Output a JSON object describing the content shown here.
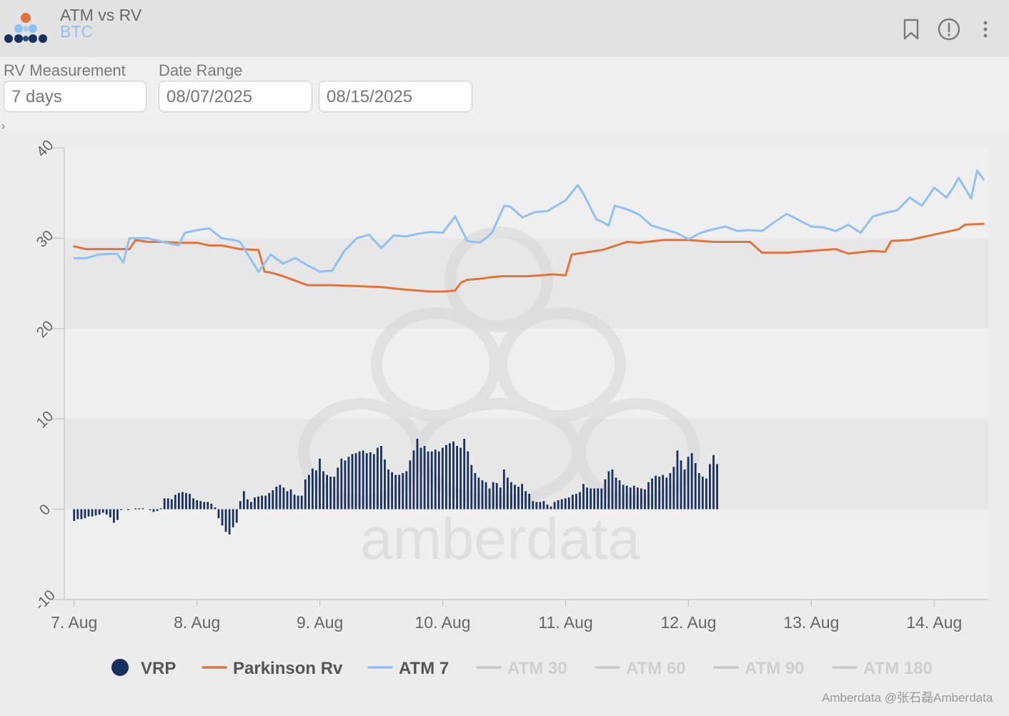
{
  "header": {
    "title": "ATM vs RV",
    "subtitle": "BTC",
    "icons": [
      "bookmark-icon",
      "info-icon",
      "more-vert-icon"
    ]
  },
  "filters": {
    "rv_label": "RV Measurement",
    "rv_value": "7 days",
    "date_label": "Date Range",
    "date_start": "08/07/2025",
    "date_end": "08/15/2025"
  },
  "watermark_text": "amberdata",
  "footer_text": "Amberdata  @张石磊Amberdata",
  "chart_data": {
    "type": "line+bar",
    "title": "",
    "xlabel": "",
    "ylabel": "",
    "ylim": [
      -10,
      40
    ],
    "y_ticks": [
      "40",
      "30",
      "20",
      "10",
      "0",
      "-10"
    ],
    "x_ticks": [
      "7. Aug",
      "8. Aug",
      "9. Aug",
      "10. Aug",
      "11. Aug",
      "12. Aug",
      "13. Aug",
      "14. Aug"
    ],
    "xlim_days": [
      6.92,
      14.44
    ],
    "legend": [
      {
        "name": "VRP",
        "color": "#17305e",
        "marker": "dot",
        "active": true
      },
      {
        "name": "Parkinson Rv",
        "color": "#e2733a",
        "marker": "line",
        "active": true
      },
      {
        "name": "ATM 7",
        "color": "#8fc1f4",
        "marker": "line",
        "active": true
      },
      {
        "name": "ATM 30",
        "color": "#c8c8c8",
        "marker": "line",
        "active": false
      },
      {
        "name": "ATM 60",
        "color": "#c8c8c8",
        "marker": "line",
        "active": false
      },
      {
        "name": "ATM 90",
        "color": "#c8c8c8",
        "marker": "line",
        "active": false
      },
      {
        "name": "ATM 180",
        "color": "#c8c8c8",
        "marker": "line",
        "active": false
      }
    ],
    "series": [
      {
        "name": "Parkinson Rv",
        "type": "line",
        "color": "#e2733a",
        "x": [
          7.0,
          7.1,
          7.3,
          7.45,
          7.5,
          7.6,
          7.72,
          7.85,
          8.0,
          8.1,
          8.2,
          8.35,
          8.5,
          8.55,
          8.6,
          8.7,
          8.8,
          8.9,
          9.0,
          9.1,
          9.3,
          9.5,
          9.7,
          9.9,
          10.0,
          10.1,
          10.15,
          10.2,
          10.3,
          10.4,
          10.5,
          10.7,
          10.9,
          11.0,
          11.05,
          11.1,
          11.3,
          11.5,
          11.6,
          11.8,
          12.0,
          12.2,
          12.5,
          12.6,
          12.8,
          13.0,
          13.2,
          13.3,
          13.5,
          13.6,
          13.65,
          13.8,
          14.0,
          14.2,
          14.25,
          14.4
        ],
        "y": [
          29.1,
          28.8,
          28.8,
          28.8,
          29.8,
          29.6,
          29.6,
          29.5,
          29.5,
          29.2,
          29.2,
          28.8,
          28.7,
          26.3,
          26.2,
          25.8,
          25.3,
          24.8,
          24.8,
          24.8,
          24.7,
          24.6,
          24.3,
          24.1,
          24.1,
          24.2,
          25.1,
          25.4,
          25.5,
          25.7,
          25.8,
          25.8,
          26.0,
          25.9,
          28.2,
          28.3,
          28.7,
          29.6,
          29.5,
          29.8,
          29.8,
          29.6,
          29.6,
          28.4,
          28.4,
          28.6,
          28.8,
          28.3,
          28.6,
          28.5,
          29.7,
          29.8,
          30.4,
          31.0,
          31.5,
          31.6
        ]
      },
      {
        "name": "ATM 7",
        "type": "line",
        "color": "#8fc1f4",
        "x": [
          7.0,
          7.1,
          7.2,
          7.35,
          7.4,
          7.45,
          7.5,
          7.6,
          7.75,
          7.85,
          7.9,
          8.0,
          8.1,
          8.2,
          8.3,
          8.35,
          8.5,
          8.6,
          8.7,
          8.8,
          8.9,
          9.0,
          9.1,
          9.2,
          9.3,
          9.4,
          9.5,
          9.6,
          9.7,
          9.8,
          9.9,
          10.0,
          10.1,
          10.2,
          10.3,
          10.35,
          10.4,
          10.5,
          10.55,
          10.65,
          10.75,
          10.85,
          11.0,
          11.1,
          11.15,
          11.25,
          11.3,
          11.35,
          11.4,
          11.5,
          11.6,
          11.7,
          11.8,
          11.9,
          12.0,
          12.1,
          12.2,
          12.3,
          12.4,
          12.5,
          12.6,
          12.7,
          12.8,
          13.0,
          13.1,
          13.2,
          13.3,
          13.4,
          13.5,
          13.6,
          13.7,
          13.8,
          13.9,
          14.0,
          14.1,
          14.15,
          14.2,
          14.3,
          14.35,
          14.4
        ],
        "y": [
          27.8,
          27.8,
          28.2,
          28.3,
          27.3,
          30.0,
          30.0,
          30.0,
          29.5,
          29.2,
          30.6,
          30.9,
          31.1,
          30.0,
          29.8,
          29.6,
          26.3,
          28.2,
          27.2,
          27.8,
          27.0,
          26.3,
          26.4,
          28.6,
          30.0,
          30.4,
          28.9,
          30.3,
          30.2,
          30.5,
          30.7,
          30.6,
          32.4,
          29.7,
          29.5,
          30.0,
          30.6,
          33.6,
          33.5,
          32.3,
          32.9,
          33.0,
          34.2,
          35.9,
          34.8,
          32.1,
          31.8,
          31.4,
          33.6,
          33.2,
          32.6,
          31.4,
          31.0,
          30.6,
          29.9,
          30.6,
          31.0,
          31.3,
          30.8,
          30.9,
          30.8,
          31.8,
          32.7,
          31.3,
          31.2,
          30.8,
          31.5,
          30.6,
          32.4,
          32.8,
          33.1,
          34.5,
          33.6,
          35.6,
          34.5,
          35.5,
          36.7,
          34.4,
          37.5,
          36.5
        ]
      },
      {
        "name": "VRP",
        "type": "bar",
        "color": "#17305e",
        "x_start": 7.0,
        "x_step": 0.0294,
        "values": [
          -1.3,
          -1.1,
          -1.1,
          -1.0,
          -0.8,
          -0.8,
          -0.7,
          -0.6,
          -0.4,
          -0.6,
          -0.9,
          -1.5,
          -1.2,
          -0.1,
          0,
          -0.1,
          0,
          0.1,
          0.1,
          0.1,
          0,
          -0.1,
          -0.3,
          -0.2,
          0.1,
          1.2,
          1.2,
          1.1,
          1.6,
          1.8,
          1.9,
          1.8,
          1.7,
          1.2,
          1.0,
          0.9,
          0.8,
          0.8,
          0.6,
          0.2,
          -1.0,
          -1.8,
          -2.5,
          -2.8,
          -2.0,
          -1.5,
          0.9,
          2.0,
          1.1,
          0.8,
          1.3,
          1.4,
          1.5,
          1.5,
          1.8,
          2.1,
          2.5,
          2.7,
          2.4,
          2.0,
          2.2,
          1.6,
          1.5,
          1.5,
          3.3,
          3.8,
          4.5,
          4.3,
          5.6,
          4.2,
          3.8,
          3.6,
          3.6,
          4.6,
          5.6,
          5.4,
          5.8,
          6.1,
          6.2,
          6.4,
          6.5,
          6.2,
          6.3,
          6.1,
          6.8,
          7.0,
          5.5,
          4.4,
          4.1,
          3.8,
          3.8,
          4.0,
          4.2,
          5.4,
          6.5,
          7.8,
          6.8,
          7.0,
          6.4,
          6.4,
          6.6,
          6.4,
          6.8,
          7.1,
          7.3,
          7.5,
          7.0,
          6.8,
          7.8,
          6.4,
          4.9,
          4.0,
          3.5,
          3.2,
          3.0,
          2.3,
          3.0,
          2.9,
          2.4,
          4.4,
          3.5,
          3.0,
          2.7,
          2.5,
          2.8,
          2.0,
          1.7,
          0.9,
          0.8,
          0.8,
          0.9,
          0.5,
          0.3,
          0.8,
          1.0,
          1.1,
          1.2,
          1.3,
          1.6,
          1.7,
          1.9,
          2.8,
          2.4,
          2.3,
          2.3,
          2.3,
          2.3,
          3.3,
          4.2,
          4.4,
          3.5,
          3.2,
          2.7,
          2.6,
          2.4,
          2.6,
          2.4,
          2.3,
          2.2,
          3.0,
          3.4,
          3.7,
          3.6,
          3.8,
          3.5,
          4.0,
          4.7,
          6.5,
          5.4,
          4.4,
          5.8,
          6.2,
          5.1,
          4.0,
          3.6,
          3.4,
          5.0,
          6.0,
          5.0
        ]
      }
    ]
  }
}
